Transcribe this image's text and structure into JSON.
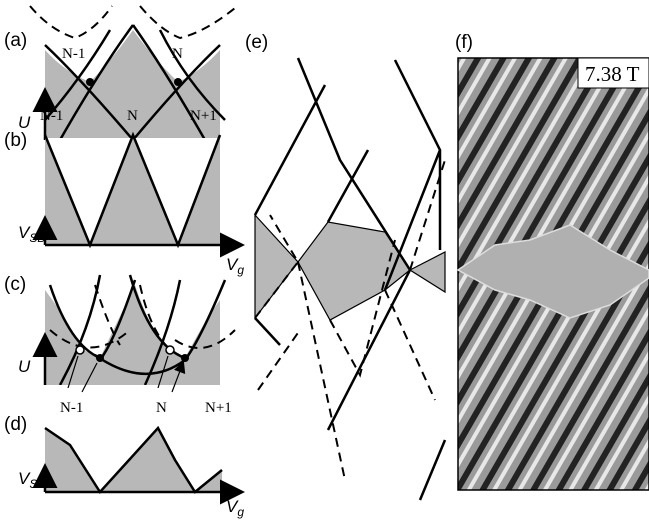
{
  "panel_a": {
    "label": "(a)",
    "top_labels": [
      "N-1",
      "N"
    ],
    "bottom_labels": [
      "N-1",
      "N",
      "N+1"
    ],
    "y_axis": "U"
  },
  "panel_b": {
    "label": "(b)",
    "y_axis": {
      "symbol": "V",
      "subscript": "SD"
    },
    "x_axis": {
      "symbol": "V",
      "subscript": "g"
    }
  },
  "panel_c": {
    "label": "(c)",
    "bottom_labels": [
      "N-1",
      "N",
      "N+1"
    ],
    "y_axis": "U"
  },
  "panel_d": {
    "label": "(d)",
    "y_axis": {
      "symbol": "V",
      "subscript": "SD"
    },
    "x_axis": {
      "symbol": "V",
      "subscript": "g"
    }
  },
  "panel_e": {
    "label": "(e)"
  },
  "panel_f": {
    "label": "(f)",
    "field": "7.38 T"
  }
}
